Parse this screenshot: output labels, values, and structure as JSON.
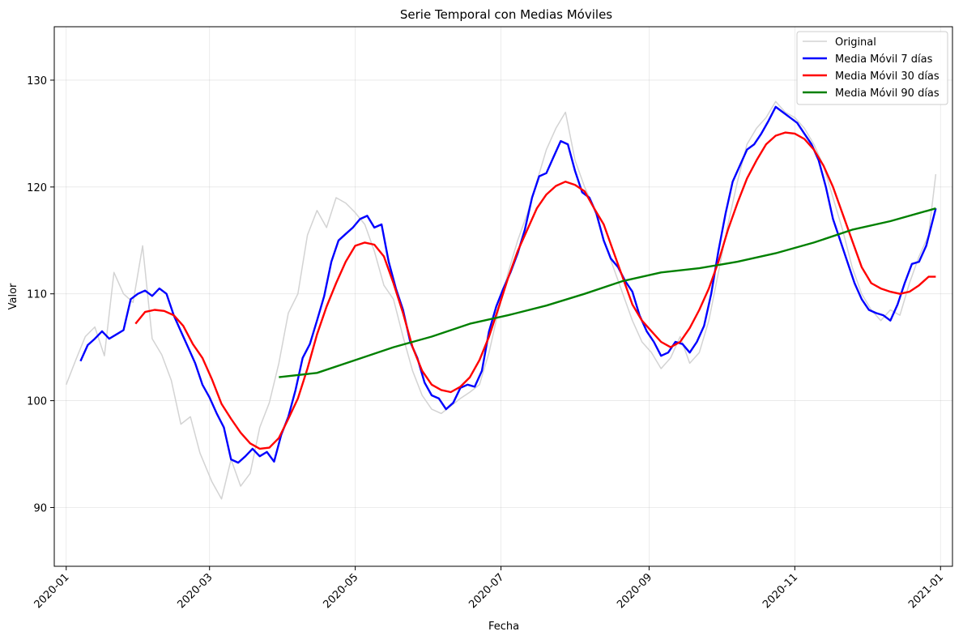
{
  "chart_data": {
    "type": "line",
    "title": "Serie Temporal con Medias Móviles",
    "xlabel": "Fecha",
    "ylabel": "Valor",
    "x_range": [
      "2019-12-27",
      "2021-01-06"
    ],
    "ylim": [
      84.5,
      135
    ],
    "grid": true,
    "legend_position": "top-right",
    "x_ticks": [
      "2020-01",
      "2020-03",
      "2020-05",
      "2020-07",
      "2020-09",
      "2020-11",
      "2021-01"
    ],
    "y_ticks": [
      90,
      100,
      110,
      120,
      130
    ],
    "series": [
      {
        "name": "Original",
        "color": "#d3d3d3",
        "width": 1.5,
        "x": [
          "2020-01-01",
          "2020-01-05",
          "2020-01-09",
          "2020-01-13",
          "2020-01-17",
          "2020-01-21",
          "2020-01-25",
          "2020-01-29",
          "2020-02-02",
          "2020-02-06",
          "2020-02-10",
          "2020-02-14",
          "2020-02-18",
          "2020-02-22",
          "2020-02-26",
          "2020-03-02",
          "2020-03-06",
          "2020-03-10",
          "2020-03-14",
          "2020-03-18",
          "2020-03-22",
          "2020-03-26",
          "2020-03-30",
          "2020-04-03",
          "2020-04-07",
          "2020-04-11",
          "2020-04-15",
          "2020-04-19",
          "2020-04-23",
          "2020-04-27",
          "2020-05-01",
          "2020-05-05",
          "2020-05-09",
          "2020-05-13",
          "2020-05-17",
          "2020-05-21",
          "2020-05-25",
          "2020-05-29",
          "2020-06-02",
          "2020-06-06",
          "2020-06-10",
          "2020-06-14",
          "2020-06-18",
          "2020-06-22",
          "2020-06-26",
          "2020-06-30",
          "2020-07-04",
          "2020-07-08",
          "2020-07-12",
          "2020-07-16",
          "2020-07-20",
          "2020-07-24",
          "2020-07-28",
          "2020-08-01",
          "2020-08-05",
          "2020-08-09",
          "2020-08-13",
          "2020-08-17",
          "2020-08-21",
          "2020-08-25",
          "2020-08-29",
          "2020-09-02",
          "2020-09-06",
          "2020-09-10",
          "2020-09-14",
          "2020-09-18",
          "2020-09-22",
          "2020-09-26",
          "2020-09-30",
          "2020-10-04",
          "2020-10-08",
          "2020-10-12",
          "2020-10-16",
          "2020-10-20",
          "2020-10-24",
          "2020-10-28",
          "2020-11-01",
          "2020-11-05",
          "2020-11-09",
          "2020-11-13",
          "2020-11-17",
          "2020-11-21",
          "2020-11-25",
          "2020-11-29",
          "2020-12-03",
          "2020-12-07",
          "2020-12-11",
          "2020-12-15",
          "2020-12-19",
          "2020-12-23",
          "2020-12-27",
          "2020-12-30"
        ],
        "y": [
          101.5,
          103.8,
          106.0,
          106.9,
          104.2,
          112.0,
          110.0,
          109.2,
          114.5,
          105.8,
          104.3,
          101.9,
          97.8,
          98.5,
          95.1,
          92.4,
          90.8,
          94.5,
          92.0,
          93.2,
          97.5,
          99.8,
          103.5,
          108.2,
          110.0,
          115.5,
          117.8,
          116.2,
          119.0,
          118.5,
          117.6,
          116.5,
          114.0,
          110.8,
          109.5,
          106.0,
          102.8,
          100.5,
          99.2,
          98.8,
          99.5,
          100.2,
          100.8,
          101.5,
          104.5,
          108.5,
          112.0,
          115.0,
          117.5,
          120.5,
          123.5,
          125.5,
          127.0,
          122.5,
          120.0,
          118.0,
          115.0,
          112.5,
          110.0,
          107.5,
          105.5,
          104.5,
          103.0,
          104.0,
          106.0,
          103.5,
          104.5,
          107.5,
          112.0,
          116.5,
          120.5,
          124.0,
          125.5,
          126.5,
          128.0,
          127.0,
          126.5,
          125.5,
          124.0,
          122.0,
          119.0,
          116.0,
          112.5,
          110.0,
          108.5,
          107.5,
          108.5,
          108.0,
          111.0,
          113.5,
          115.5,
          121.2
        ]
      },
      {
        "name": "Media Móvil 7 días",
        "color": "#0000ff",
        "width": 2.4,
        "x": [
          "2020-01-07",
          "2020-01-10",
          "2020-01-13",
          "2020-01-16",
          "2020-01-19",
          "2020-01-22",
          "2020-01-25",
          "2020-01-28",
          "2020-01-31",
          "2020-02-03",
          "2020-02-06",
          "2020-02-09",
          "2020-02-12",
          "2020-02-15",
          "2020-02-18",
          "2020-02-21",
          "2020-02-24",
          "2020-02-27",
          "2020-03-01",
          "2020-03-04",
          "2020-03-07",
          "2020-03-10",
          "2020-03-13",
          "2020-03-16",
          "2020-03-19",
          "2020-03-22",
          "2020-03-25",
          "2020-03-28",
          "2020-03-31",
          "2020-04-03",
          "2020-04-06",
          "2020-04-09",
          "2020-04-12",
          "2020-04-15",
          "2020-04-18",
          "2020-04-21",
          "2020-04-24",
          "2020-04-27",
          "2020-04-30",
          "2020-05-03",
          "2020-05-06",
          "2020-05-09",
          "2020-05-12",
          "2020-05-15",
          "2020-05-18",
          "2020-05-21",
          "2020-05-24",
          "2020-05-27",
          "2020-05-30",
          "2020-06-02",
          "2020-06-05",
          "2020-06-08",
          "2020-06-11",
          "2020-06-14",
          "2020-06-17",
          "2020-06-20",
          "2020-06-23",
          "2020-06-26",
          "2020-06-29",
          "2020-07-02",
          "2020-07-05",
          "2020-07-08",
          "2020-07-11",
          "2020-07-14",
          "2020-07-17",
          "2020-07-20",
          "2020-07-23",
          "2020-07-26",
          "2020-07-29",
          "2020-08-01",
          "2020-08-04",
          "2020-08-07",
          "2020-08-10",
          "2020-08-13",
          "2020-08-16",
          "2020-08-19",
          "2020-08-22",
          "2020-08-25",
          "2020-08-28",
          "2020-08-31",
          "2020-09-03",
          "2020-09-06",
          "2020-09-09",
          "2020-09-12",
          "2020-09-15",
          "2020-09-18",
          "2020-09-21",
          "2020-09-24",
          "2020-09-27",
          "2020-09-30",
          "2020-10-03",
          "2020-10-06",
          "2020-10-09",
          "2020-10-12",
          "2020-10-15",
          "2020-10-18",
          "2020-10-21",
          "2020-10-24",
          "2020-10-27",
          "2020-10-30",
          "2020-11-02",
          "2020-11-05",
          "2020-11-08",
          "2020-11-11",
          "2020-11-14",
          "2020-11-17",
          "2020-11-20",
          "2020-11-23",
          "2020-11-26",
          "2020-11-29",
          "2020-12-02",
          "2020-12-05",
          "2020-12-08",
          "2020-12-11",
          "2020-12-14",
          "2020-12-17",
          "2020-12-20",
          "2020-12-23",
          "2020-12-26",
          "2020-12-30"
        ],
        "y": [
          103.7,
          105.2,
          105.8,
          106.5,
          105.8,
          106.2,
          106.6,
          109.5,
          110.0,
          110.3,
          109.8,
          110.5,
          110.0,
          108.0,
          106.5,
          105.0,
          103.5,
          101.5,
          100.3,
          98.8,
          97.5,
          94.5,
          94.2,
          94.8,
          95.5,
          94.8,
          95.2,
          94.3,
          96.8,
          98.5,
          101.0,
          104.0,
          105.3,
          107.5,
          109.8,
          113.0,
          115.0,
          115.6,
          116.2,
          117.0,
          117.3,
          116.2,
          116.5,
          113.0,
          110.5,
          108.5,
          105.5,
          104.0,
          101.7,
          100.5,
          100.2,
          99.2,
          99.8,
          101.2,
          101.5,
          101.3,
          102.8,
          106.5,
          108.8,
          110.5,
          112.0,
          113.8,
          116.0,
          119.0,
          121.0,
          121.3,
          122.8,
          124.3,
          124.0,
          121.5,
          119.5,
          119.0,
          117.5,
          115.0,
          113.3,
          112.5,
          111.2,
          110.2,
          108.0,
          106.5,
          105.5,
          104.2,
          104.5,
          105.5,
          105.3,
          104.5,
          105.5,
          107.0,
          110.0,
          114.0,
          117.5,
          120.5,
          122.0,
          123.5,
          124.0,
          125.0,
          126.2,
          127.5,
          127.0,
          126.5,
          126.0,
          125.0,
          124.0,
          122.5,
          120.0,
          117.0,
          115.0,
          113.0,
          111.0,
          109.5,
          108.5,
          108.2,
          108.0,
          107.5,
          109.0,
          111.0,
          112.8,
          113.0,
          114.5,
          118.0
        ]
      },
      {
        "name": "Media Móvil 30 días",
        "color": "#ff0000",
        "width": 2.4,
        "x": [
          "2020-01-30",
          "2020-02-03",
          "2020-02-07",
          "2020-02-11",
          "2020-02-15",
          "2020-02-19",
          "2020-02-23",
          "2020-02-27",
          "2020-03-02",
          "2020-03-06",
          "2020-03-10",
          "2020-03-14",
          "2020-03-18",
          "2020-03-22",
          "2020-03-26",
          "2020-03-30",
          "2020-04-03",
          "2020-04-07",
          "2020-04-11",
          "2020-04-15",
          "2020-04-19",
          "2020-04-23",
          "2020-04-27",
          "2020-05-01",
          "2020-05-05",
          "2020-05-09",
          "2020-05-13",
          "2020-05-17",
          "2020-05-21",
          "2020-05-25",
          "2020-05-29",
          "2020-06-02",
          "2020-06-06",
          "2020-06-10",
          "2020-06-14",
          "2020-06-18",
          "2020-06-22",
          "2020-06-26",
          "2020-06-30",
          "2020-07-04",
          "2020-07-08",
          "2020-07-12",
          "2020-07-16",
          "2020-07-20",
          "2020-07-24",
          "2020-07-28",
          "2020-08-01",
          "2020-08-05",
          "2020-08-09",
          "2020-08-13",
          "2020-08-17",
          "2020-08-21",
          "2020-08-25",
          "2020-08-29",
          "2020-09-02",
          "2020-09-06",
          "2020-09-10",
          "2020-09-14",
          "2020-09-18",
          "2020-09-22",
          "2020-09-26",
          "2020-09-30",
          "2020-10-04",
          "2020-10-08",
          "2020-10-12",
          "2020-10-16",
          "2020-10-20",
          "2020-10-24",
          "2020-10-28",
          "2020-11-01",
          "2020-11-05",
          "2020-11-09",
          "2020-11-13",
          "2020-11-17",
          "2020-11-21",
          "2020-11-25",
          "2020-11-29",
          "2020-12-03",
          "2020-12-07",
          "2020-12-11",
          "2020-12-15",
          "2020-12-19",
          "2020-12-23",
          "2020-12-27",
          "2020-12-30"
        ],
        "y": [
          107.2,
          108.3,
          108.5,
          108.4,
          108.0,
          107.0,
          105.3,
          104.0,
          102.0,
          99.7,
          98.3,
          97.0,
          96.0,
          95.5,
          95.6,
          96.5,
          98.3,
          100.2,
          103.0,
          106.2,
          108.8,
          111.0,
          113.0,
          114.5,
          114.8,
          114.6,
          113.5,
          111.0,
          108.2,
          105.0,
          102.8,
          101.5,
          101.0,
          100.8,
          101.3,
          102.2,
          103.8,
          106.0,
          108.7,
          111.5,
          114.0,
          116.0,
          118.0,
          119.3,
          120.1,
          120.5,
          120.2,
          119.6,
          118.0,
          116.5,
          114.0,
          111.5,
          109.0,
          107.5,
          106.5,
          105.5,
          105.0,
          105.5,
          106.8,
          108.5,
          110.5,
          113.0,
          116.0,
          118.5,
          120.8,
          122.5,
          124.0,
          124.8,
          125.1,
          125.0,
          124.5,
          123.5,
          122.0,
          120.0,
          117.5,
          115.0,
          112.5,
          111.0,
          110.5,
          110.2,
          110.0,
          110.2,
          110.8,
          111.6,
          111.6
        ]
      },
      {
        "name": "Media Móvil 90 días",
        "color": "#008000",
        "width": 2.4,
        "x": [
          "2020-03-30",
          "2020-04-15",
          "2020-05-01",
          "2020-05-17",
          "2020-06-02",
          "2020-06-18",
          "2020-07-04",
          "2020-07-20",
          "2020-08-05",
          "2020-08-21",
          "2020-09-06",
          "2020-09-22",
          "2020-10-08",
          "2020-10-24",
          "2020-11-09",
          "2020-11-25",
          "2020-12-11",
          "2020-12-30"
        ],
        "y": [
          102.2,
          102.6,
          103.8,
          105.0,
          106.0,
          107.2,
          108.0,
          108.9,
          110.0,
          111.2,
          112.0,
          112.4,
          113.0,
          113.8,
          114.8,
          116.0,
          116.8,
          118.0
        ]
      }
    ]
  }
}
